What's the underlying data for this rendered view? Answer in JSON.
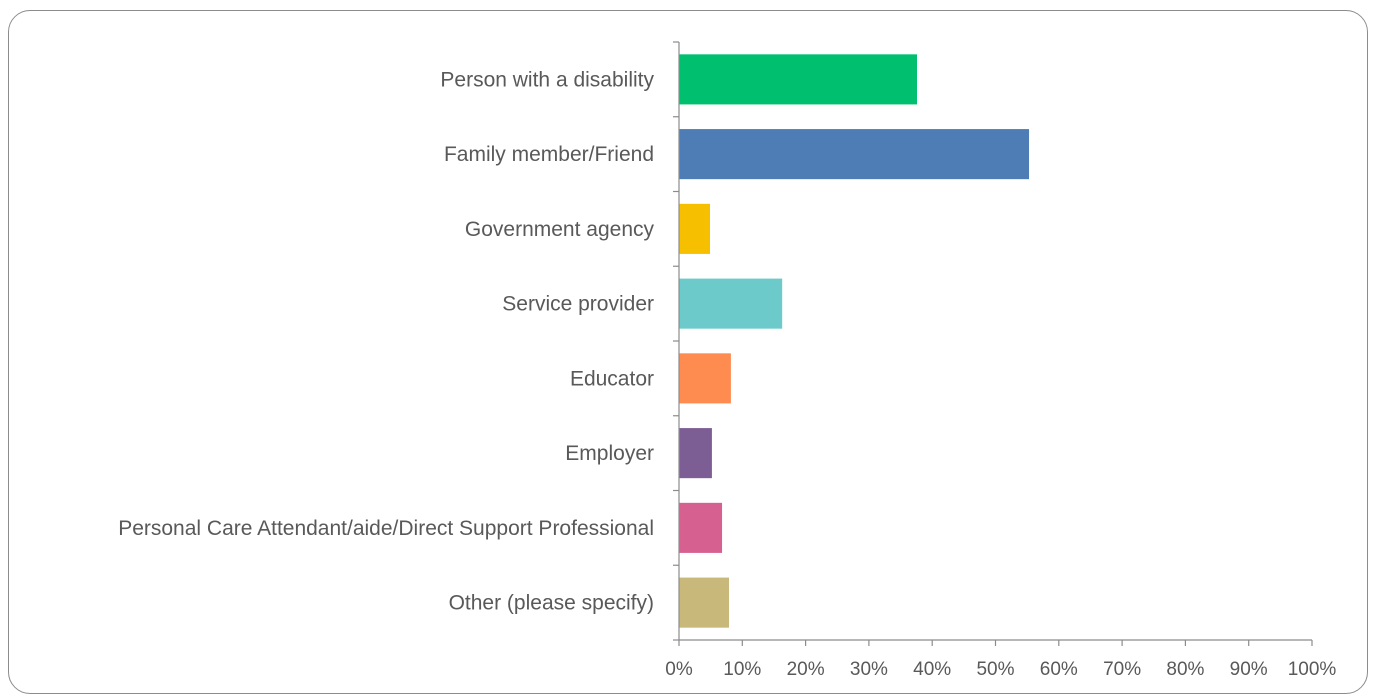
{
  "chart_data": {
    "type": "bar",
    "orientation": "horizontal",
    "title": "",
    "xlabel": "",
    "ylabel": "",
    "xlim": [
      0,
      100
    ],
    "x_ticks": [
      "0%",
      "10%",
      "20%",
      "30%",
      "40%",
      "50%",
      "60%",
      "70%",
      "80%",
      "90%",
      "100%"
    ],
    "grid": false,
    "legend": "none",
    "categories": [
      "Person with a disability",
      "Family member/Friend",
      "Government agency",
      "Service provider",
      "Educator",
      "Employer",
      "Personal Care Attendant/aide/Direct Support Professional",
      "Other (please specify)"
    ],
    "values": [
      37.6,
      55.3,
      4.9,
      16.3,
      8.2,
      5.2,
      6.8,
      7.9
    ],
    "colors": [
      "#00c06f",
      "#4e7cb5",
      "#f6bf00",
      "#6ccaca",
      "#fe8c51",
      "#7c5e94",
      "#d66191",
      "#c8b87a"
    ]
  }
}
